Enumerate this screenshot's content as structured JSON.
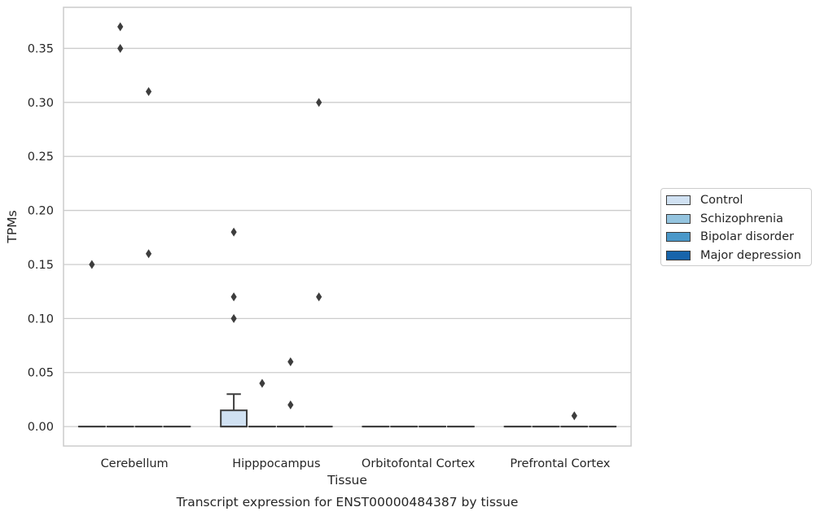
{
  "chart_data": {
    "type": "box",
    "title": "",
    "caption": "Transcript expression for ENST00000484387 by tissue",
    "xlabel": "Tissue",
    "ylabel": "TPMs",
    "ylim": [
      -0.018,
      0.388
    ],
    "yticks": [
      0.0,
      0.05,
      0.1,
      0.15,
      0.2,
      0.25,
      0.3,
      0.35
    ],
    "ytick_labels": [
      "0.00",
      "0.05",
      "0.10",
      "0.15",
      "0.20",
      "0.25",
      "0.30",
      "0.35"
    ],
    "grid": "horizontal",
    "legend_position": "right",
    "categories": [
      "Cerebellum",
      "Hipppocampus",
      "Orbitofontal Cortex",
      "Prefrontal Cortex"
    ],
    "series": [
      {
        "name": "Control",
        "color": "#d0e1f2",
        "boxes": [
          {
            "q1": 0,
            "median": 0,
            "q3": 0,
            "whisker_low": 0,
            "whisker_high": 0,
            "outliers": [
              0.15
            ]
          },
          {
            "q1": 0,
            "median": 0,
            "q3": 0.015,
            "whisker_low": 0,
            "whisker_high": 0.03,
            "outliers": [
              0.18,
              0.12,
              0.1
            ]
          },
          {
            "q1": 0,
            "median": 0,
            "q3": 0,
            "whisker_low": 0,
            "whisker_high": 0,
            "outliers": []
          },
          {
            "q1": 0,
            "median": 0,
            "q3": 0,
            "whisker_low": 0,
            "whisker_high": 0,
            "outliers": []
          }
        ]
      },
      {
        "name": "Schizophrenia",
        "color": "#94c4df",
        "boxes": [
          {
            "q1": 0,
            "median": 0,
            "q3": 0,
            "whisker_low": 0,
            "whisker_high": 0,
            "outliers": [
              0.37,
              0.35
            ]
          },
          {
            "q1": 0,
            "median": 0,
            "q3": 0,
            "whisker_low": 0,
            "whisker_high": 0,
            "outliers": [
              0.04
            ]
          },
          {
            "q1": 0,
            "median": 0,
            "q3": 0,
            "whisker_low": 0,
            "whisker_high": 0,
            "outliers": []
          },
          {
            "q1": 0,
            "median": 0,
            "q3": 0,
            "whisker_low": 0,
            "whisker_high": 0,
            "outliers": []
          }
        ]
      },
      {
        "name": "Bipolar disorder",
        "color": "#4a98c9",
        "boxes": [
          {
            "q1": 0,
            "median": 0,
            "q3": 0,
            "whisker_low": 0,
            "whisker_high": 0,
            "outliers": [
              0.31,
              0.16
            ]
          },
          {
            "q1": 0,
            "median": 0,
            "q3": 0,
            "whisker_low": 0,
            "whisker_high": 0,
            "outliers": [
              0.06,
              0.02
            ]
          },
          {
            "q1": 0,
            "median": 0,
            "q3": 0,
            "whisker_low": 0,
            "whisker_high": 0,
            "outliers": []
          },
          {
            "q1": 0,
            "median": 0,
            "q3": 0,
            "whisker_low": 0,
            "whisker_high": 0,
            "outliers": [
              0.01
            ]
          }
        ]
      },
      {
        "name": "Major depression",
        "color": "#1764ab",
        "boxes": [
          {
            "q1": 0,
            "median": 0,
            "q3": 0,
            "whisker_low": 0,
            "whisker_high": 0,
            "outliers": []
          },
          {
            "q1": 0,
            "median": 0,
            "q3": 0,
            "whisker_low": 0,
            "whisker_high": 0,
            "outliers": [
              0.3,
              0.12
            ]
          },
          {
            "q1": 0,
            "median": 0,
            "q3": 0,
            "whisker_low": 0,
            "whisker_high": 0,
            "outliers": []
          },
          {
            "q1": 0,
            "median": 0,
            "q3": 0,
            "whisker_low": 0,
            "whisker_high": 0,
            "outliers": []
          }
        ]
      }
    ]
  }
}
